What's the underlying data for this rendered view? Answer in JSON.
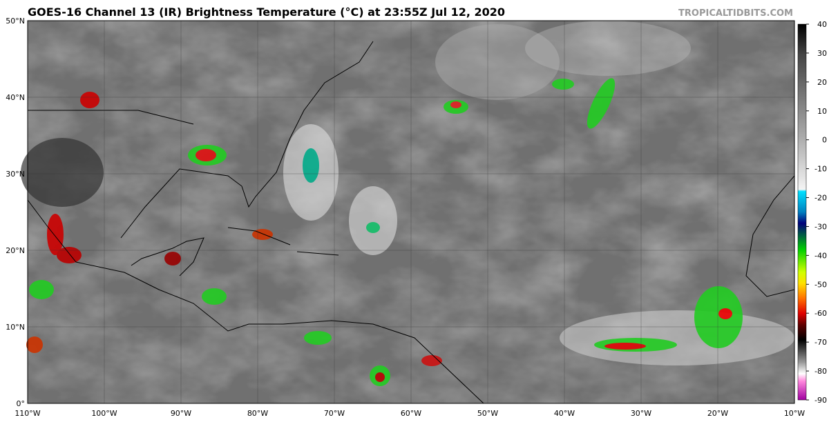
{
  "header": {
    "title": "GOES-16 Channel 13 (IR) Brightness Temperature (°C) at 23:55Z Jul 12, 2020",
    "source": "TROPICALTIDBITS.COM"
  },
  "map": {
    "lon_range": [
      -110,
      -10
    ],
    "lat_range": [
      0,
      50
    ],
    "lat_ticks": [
      {
        "value": 50,
        "label": "50°N"
      },
      {
        "value": 40,
        "label": "40°N"
      },
      {
        "value": 30,
        "label": "30°N"
      },
      {
        "value": 20,
        "label": "20°N"
      },
      {
        "value": 10,
        "label": "10°N"
      },
      {
        "value": 0,
        "label": "0°"
      }
    ],
    "lon_ticks": [
      {
        "value": -110,
        "label": "110°W"
      },
      {
        "value": -100,
        "label": "100°W"
      },
      {
        "value": -90,
        "label": "90°W"
      },
      {
        "value": -80,
        "label": "80°W"
      },
      {
        "value": -70,
        "label": "70°W"
      },
      {
        "value": -60,
        "label": "60°W"
      },
      {
        "value": -50,
        "label": "50°W"
      },
      {
        "value": -40,
        "label": "40°W"
      },
      {
        "value": -30,
        "label": "30°W"
      },
      {
        "value": -20,
        "label": "20°W"
      },
      {
        "value": -10,
        "label": "10°W"
      }
    ]
  },
  "colorbar": {
    "range": [
      -90,
      40
    ],
    "ticks": [
      40,
      30,
      20,
      10,
      0,
      -10,
      -20,
      -30,
      -40,
      -50,
      -60,
      -70,
      -80,
      -90
    ]
  }
}
